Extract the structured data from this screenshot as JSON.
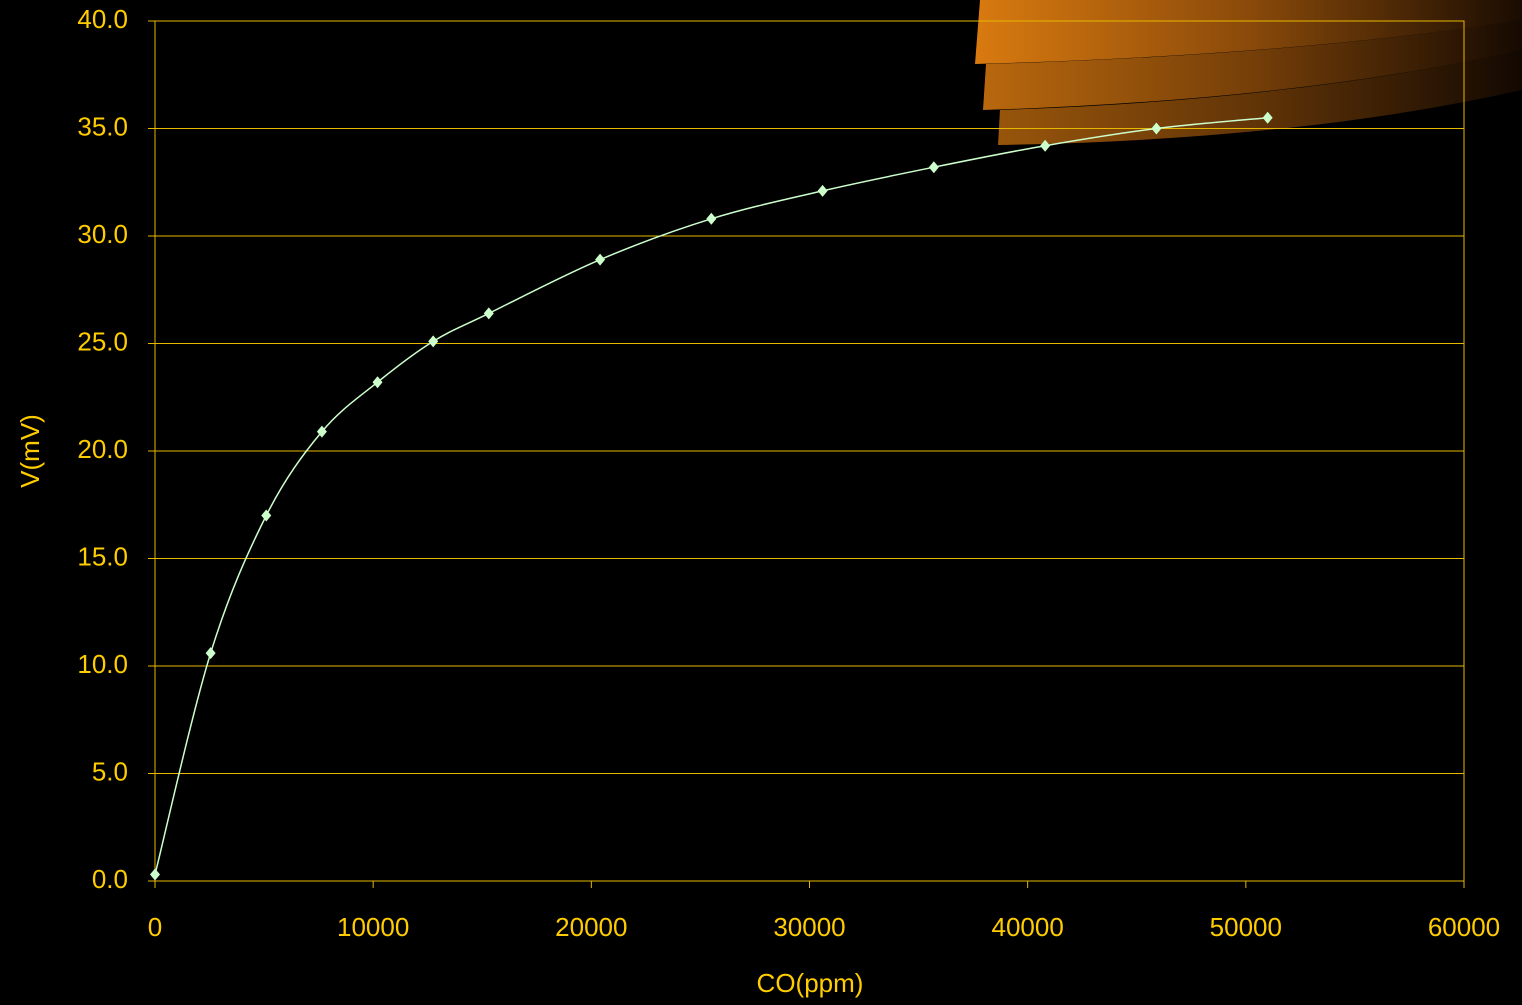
{
  "chart_data": {
    "type": "scatter",
    "x_label": "CO(ppm)",
    "y_label": "V(mV)",
    "xlim": [
      0,
      60000
    ],
    "xticks": [
      0,
      10000,
      20000,
      30000,
      40000,
      50000,
      60000
    ],
    "ylim": [
      0,
      40
    ],
    "yticks": [
      {
        "value": 0,
        "label": "0.0"
      },
      {
        "value": 5,
        "label": "5.0"
      },
      {
        "value": 10,
        "label": "10.0"
      },
      {
        "value": 15,
        "label": "15.0"
      },
      {
        "value": 20,
        "label": "20.0"
      },
      {
        "value": 25,
        "label": "25.0"
      },
      {
        "value": 30,
        "label": "30.0"
      },
      {
        "value": 35,
        "label": "35.0"
      },
      {
        "value": 40,
        "label": "40.0"
      }
    ],
    "grid": true,
    "smooth": true,
    "series": [
      {
        "color": "#ccffcc",
        "x": [
          0,
          2550,
          5100,
          7650,
          10200,
          12750,
          15300,
          20400,
          25500,
          30600,
          35700,
          40800,
          45900,
          51000
        ],
        "values": [
          0.3,
          10.6,
          17.0,
          20.9,
          23.2,
          25.1,
          26.4,
          28.9,
          30.8,
          32.1,
          33.2,
          34.2,
          35.0,
          35.5
        ]
      }
    ]
  }
}
